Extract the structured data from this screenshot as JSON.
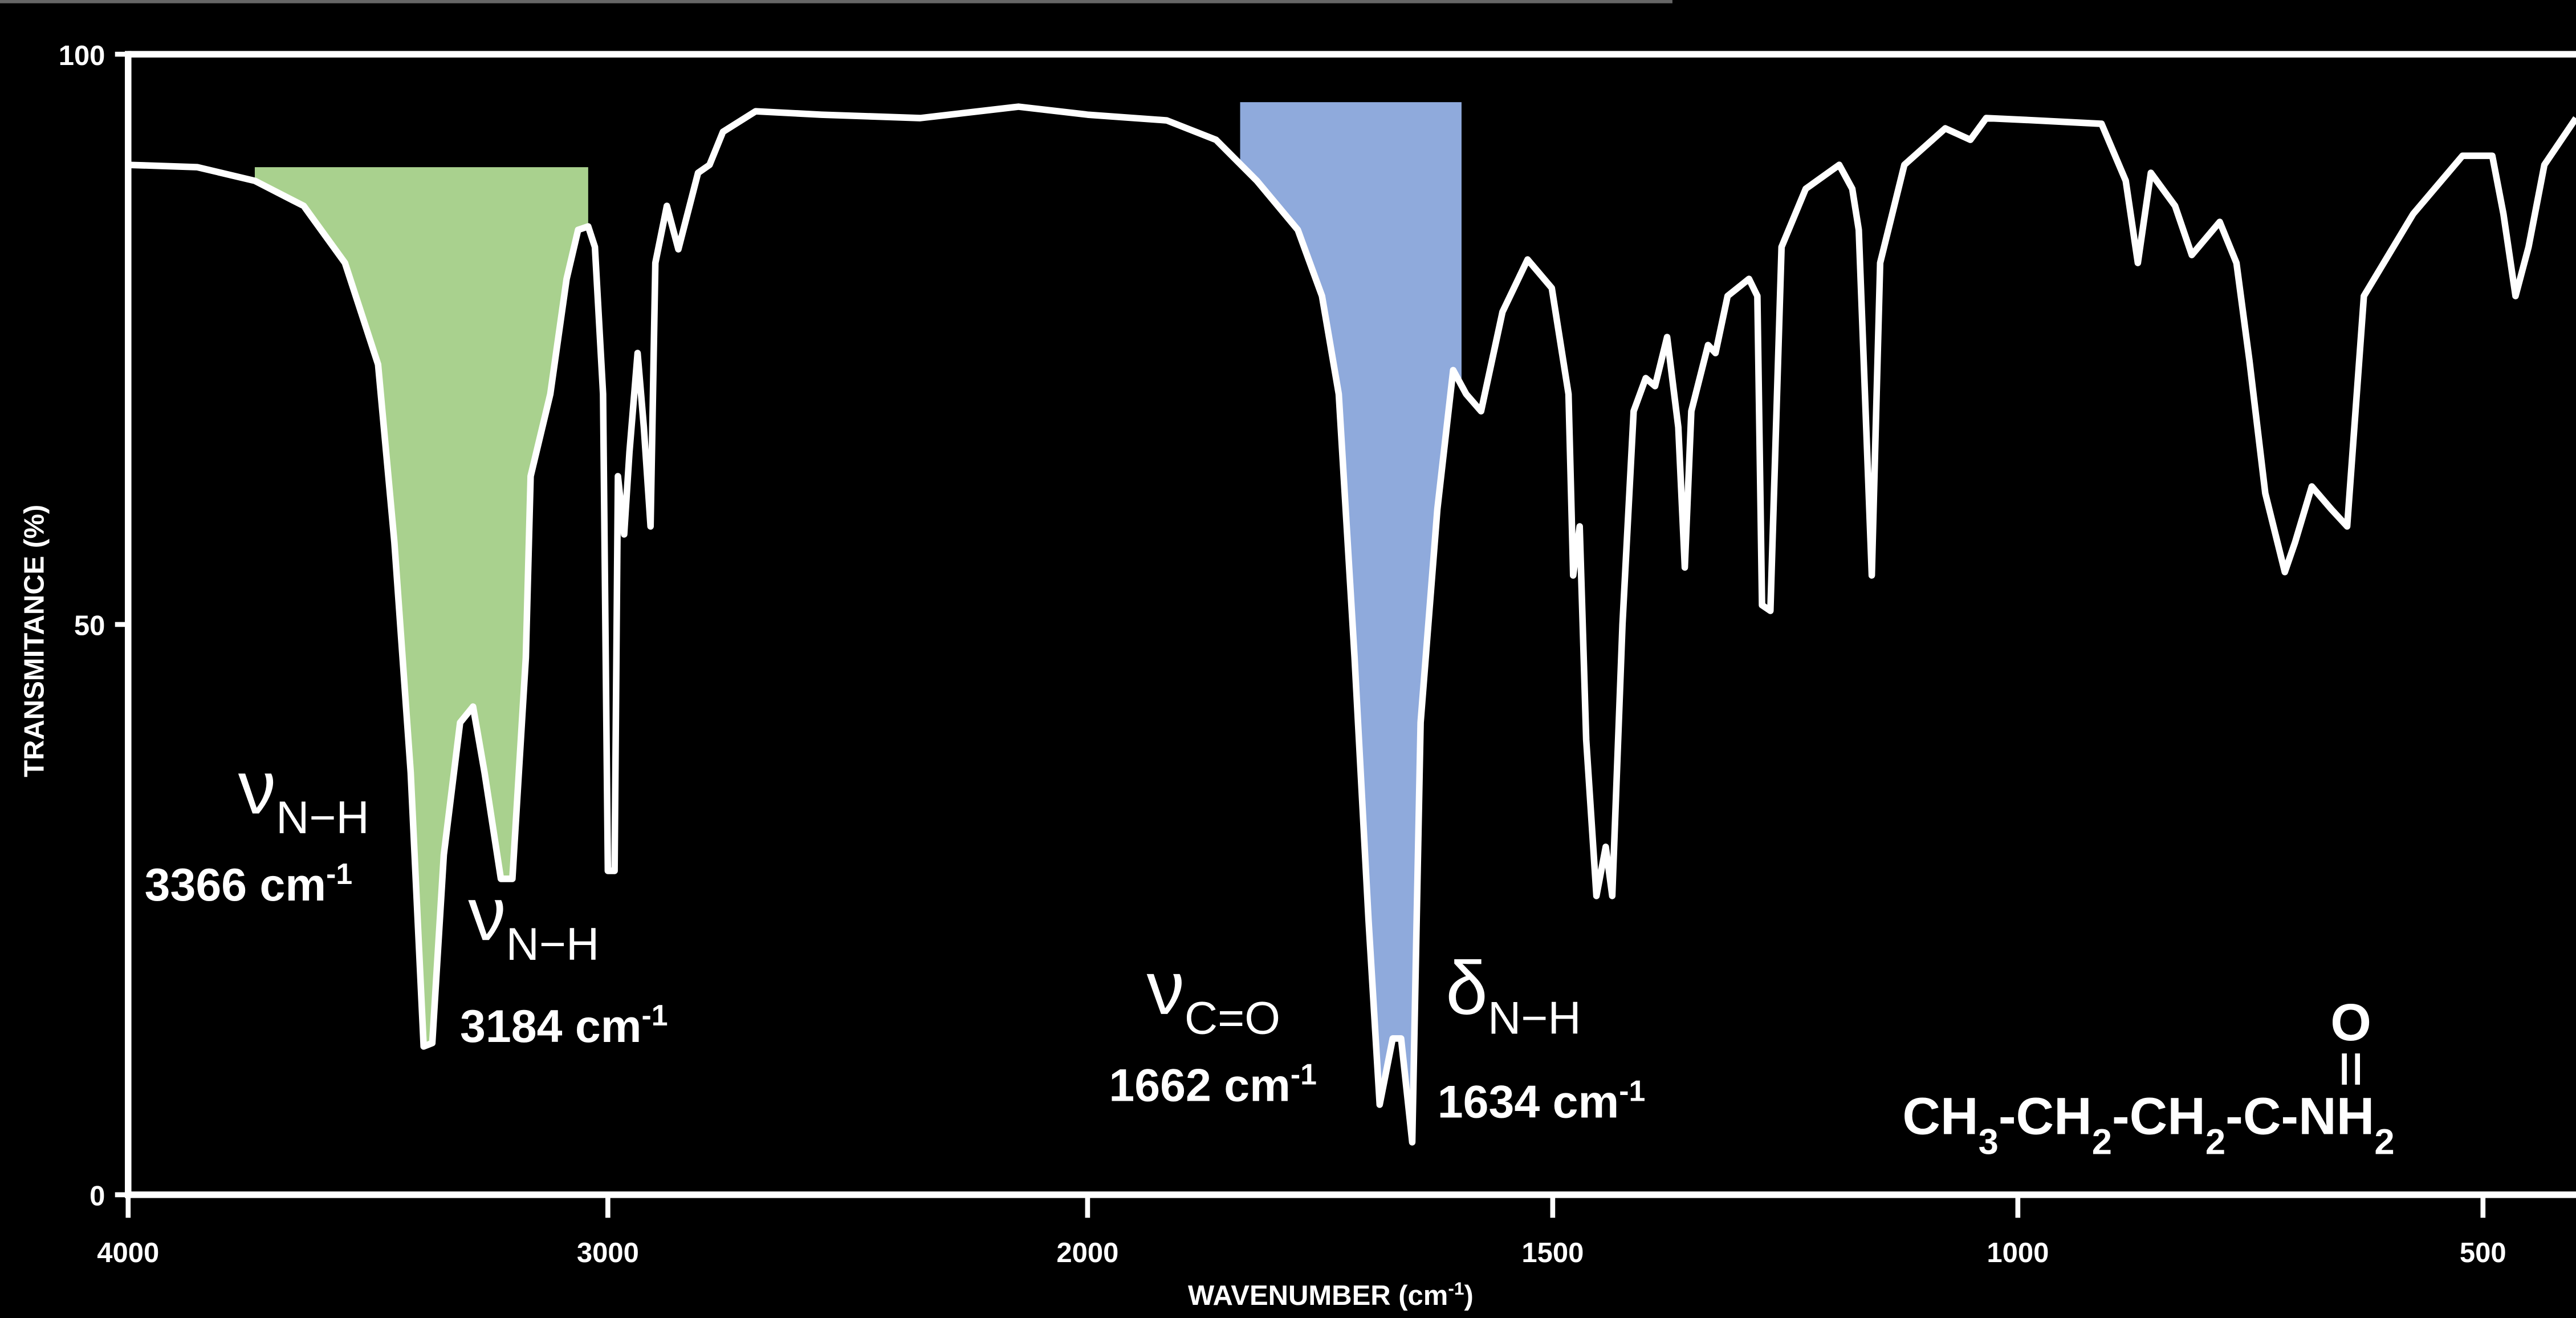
{
  "chart_data": {
    "type": "line",
    "y_label": "TRANSMITANCE (%)",
    "x_label": "WAVENUMBER (cm",
    "x_label_sup": "-1",
    "x_label_end": ")",
    "color": "#ffffff",
    "xlim": [
      4000,
      400
    ],
    "x_scale_break": 2000,
    "xticks": [
      4000,
      3000,
      2000,
      1500,
      1000,
      500
    ],
    "ylim": [
      0,
      100
    ],
    "yticks": [
      0,
      50,
      100
    ],
    "x": [
      4000,
      3856,
      3736,
      3634,
      3548,
      3479,
      3445,
      3411,
      3384,
      3366,
      3342,
      3308,
      3281,
      3257,
      3223,
      3199,
      3171,
      3161,
      3120,
      3086,
      3062,
      3041,
      3027,
      3010,
      3000,
      2986,
      2979,
      2966,
      2955,
      2938,
      2925,
      2911,
      2901,
      2877,
      2853,
      2812,
      2788,
      2760,
      2692,
      2555,
      2349,
      2144,
      2000,
      1915,
      1862,
      1818,
      1774,
      1748,
      1730,
      1713,
      1698,
      1686,
      1672,
      1663,
      1651,
      1642,
      1624,
      1607,
      1593,
      1577,
      1554,
      1527,
      1501,
      1483,
      1478,
      1471,
      1464,
      1453,
      1443,
      1436,
      1425,
      1413,
      1400,
      1390,
      1377,
      1365,
      1358,
      1351,
      1333,
      1325,
      1312,
      1289,
      1280,
      1275,
      1266,
      1254,
      1228,
      1192,
      1178,
      1171,
      1157,
      1148,
      1122,
      1078,
      1051,
      1034,
      981,
      910,
      884,
      871,
      857,
      831,
      813,
      783,
      765,
      751,
      734,
      713,
      702,
      684,
      663,
      646,
      628,
      575,
      522,
      490,
      478,
      465,
      451,
      434,
      400
    ],
    "values": [
      90.3,
      90.1,
      88.9,
      86.7,
      81.7,
      72.8,
      57.2,
      37.0,
      13.0,
      13.3,
      29.8,
      41.4,
      42.8,
      37.0,
      27.7,
      27.7,
      47.1,
      63.0,
      70.2,
      80.3,
      84.6,
      84.9,
      83.1,
      70.2,
      28.4,
      28.4,
      63.0,
      57.9,
      65.1,
      73.8,
      67.3,
      58.6,
      81.7,
      86.7,
      82.9,
      89.6,
      90.3,
      93.2,
      95.0,
      94.7,
      94.4,
      95.4,
      94.7,
      94.2,
      92.5,
      88.9,
      84.6,
      78.8,
      70.2,
      47.1,
      24.1,
      7.9,
      13.7,
      13.7,
      4.6,
      41.4,
      60.1,
      72.3,
      70.2,
      68.7,
      77.4,
      82.0,
      79.5,
      70.2,
      54.3,
      58.6,
      39.9,
      26.2,
      30.5,
      26.2,
      50.0,
      68.7,
      71.6,
      70.9,
      75.2,
      67.3,
      55.0,
      68.7,
      74.5,
      73.8,
      78.8,
      80.3,
      78.8,
      51.7,
      51.2,
      83.1,
      88.2,
      90.3,
      88.2,
      84.6,
      54.3,
      81.7,
      90.3,
      93.5,
      92.5,
      94.4,
      94.2,
      93.9,
      88.9,
      81.7,
      89.6,
      86.7,
      82.4,
      85.3,
      81.7,
      73.1,
      61.5,
      54.6,
      57.2,
      62.1,
      60.1,
      58.6,
      78.8,
      86.0,
      91.1,
      91.1,
      86.0,
      78.8,
      83.1,
      90.3,
      94.4
    ],
    "highlights": [
      {
        "range": [
          3736,
          3041
        ],
        "top": 90.1,
        "color": "#a9d18e"
      },
      {
        "range": [
          1836,
          1598
        ],
        "top": 95.8,
        "color": "#8faadc"
      }
    ],
    "annotations": [
      {
        "symbol": "ν",
        "subscript": "N−H",
        "label": "3366 cm",
        "superscript": "-1"
      },
      {
        "symbol": "ν",
        "subscript": "N−H",
        "label": "3184 cm",
        "superscript": "-1"
      },
      {
        "symbol": "ν",
        "subscript": "C=O",
        "label": "1662 cm",
        "superscript": "-1"
      },
      {
        "symbol": "δ",
        "subscript": "N−H",
        "label": "1634 cm",
        "superscript": "-1"
      }
    ],
    "formula": [
      {
        "text": "CH"
      },
      {
        "text": "3",
        "sub": true
      },
      {
        "text": "-CH"
      },
      {
        "text": "2",
        "sub": true
      },
      {
        "text": "-CH"
      },
      {
        "text": "2",
        "sub": true
      },
      {
        "text": "-C"
      },
      {
        "text": "-NH"
      },
      {
        "text": "2",
        "sub": true
      }
    ],
    "formula_top": "O"
  }
}
